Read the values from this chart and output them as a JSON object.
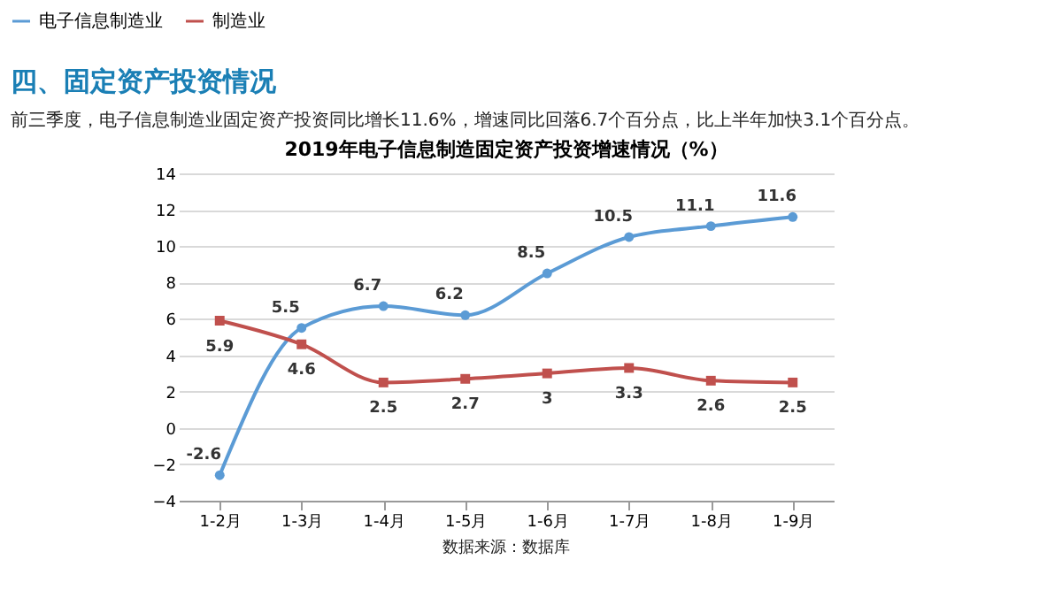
{
  "chart_data": {
    "type": "line",
    "title": "2019年电子信息制造固定资产投资增速情况（%）",
    "annotations": [
      "四、固定资产投资情况",
      "前三季度，电子信息制造业固定资产投资同比增长11.6%，增速同比回落6.7个百分点，比上半年加快3.1个百分点。",
      "数据来源：数据库"
    ],
    "categories": [
      "1-2月",
      "1-3月",
      "1-4月",
      "1-5月",
      "1-6月",
      "1-7月",
      "1-8月",
      "1-9月"
    ],
    "series": [
      {
        "name": "电子信息制造业",
        "color": "#5b9bd5",
        "marker": "circle",
        "values": [
          -2.6,
          5.5,
          6.7,
          6.2,
          8.5,
          10.5,
          11.1,
          11.6
        ]
      },
      {
        "name": "制造业",
        "color": "#c0504d",
        "marker": "square",
        "values": [
          5.9,
          4.6,
          2.5,
          2.7,
          3,
          3.3,
          2.6,
          2.5
        ]
      }
    ],
    "ylim": [
      -4,
      14
    ],
    "yticks": [
      -4,
      -2,
      0,
      2,
      4,
      6,
      8,
      10,
      12,
      14
    ],
    "grid": "y",
    "legend": "top",
    "data_labels": true
  }
}
